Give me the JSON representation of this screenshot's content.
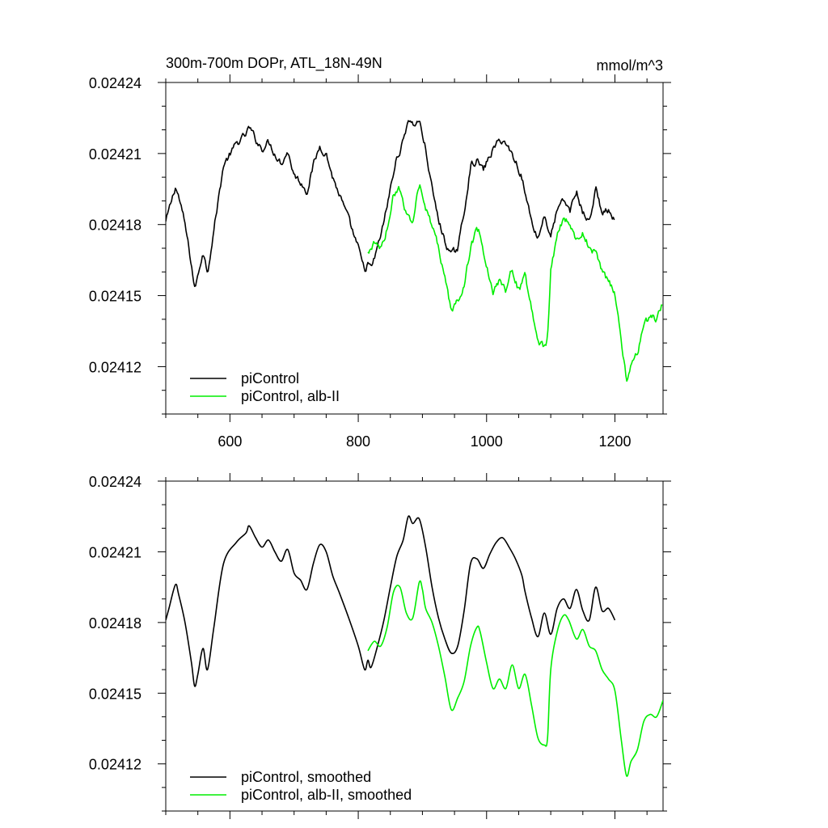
{
  "header": {
    "title": "300m-700m DOPr, ATL_18N-49N",
    "units": "mmol/m^3"
  },
  "colors": {
    "piControl": "#000000",
    "alb": "#00ee00"
  },
  "chart_data": [
    {
      "type": "line",
      "panel": "top",
      "title": "300m-700m DOPr, ATL_18N-49N",
      "units_label": "mmol/m^3",
      "xlim": [
        500,
        1275
      ],
      "ylim": [
        0.0241,
        0.02424
      ],
      "x_ticks": [
        600,
        800,
        1000,
        1200
      ],
      "x_tick_labels": [
        "600",
        "800",
        "1000",
        "1200"
      ],
      "y_ticks": [
        0.02412,
        0.02415,
        0.02418,
        0.02421,
        0.02424
      ],
      "y_tick_labels": [
        "0.02412",
        "0.02415",
        "0.02418",
        "0.02421",
        "0.02424"
      ],
      "legend": "bottom-left",
      "series": [
        {
          "name": "piControl",
          "color": "#000000",
          "noise": 1.7e-06,
          "x": [
            500,
            505,
            515,
            520,
            530,
            540,
            545,
            550,
            558,
            565,
            575,
            590,
            610,
            625,
            630,
            640,
            650,
            660,
            670,
            680,
            690,
            700,
            710,
            720,
            730,
            740,
            750,
            760,
            770,
            785,
            800,
            810,
            815,
            820,
            830,
            840,
            850,
            860,
            870,
            878,
            885,
            895,
            905,
            915,
            925,
            935,
            945,
            955,
            965,
            975,
            985,
            995,
            1005,
            1015,
            1025,
            1035,
            1045,
            1055,
            1060,
            1070,
            1080,
            1090,
            1100,
            1110,
            1120,
            1130,
            1140,
            1150,
            1160,
            1170,
            1180,
            1190,
            1200
          ],
          "y": [
            0.024181,
            0.024186,
            0.024196,
            0.024192,
            0.02418,
            0.024163,
            0.024153,
            0.024158,
            0.024169,
            0.02416,
            0.024178,
            0.024205,
            0.024214,
            0.024218,
            0.024221,
            0.024216,
            0.024212,
            0.024215,
            0.02421,
            0.024206,
            0.024211,
            0.024201,
            0.024198,
            0.024194,
            0.024205,
            0.024213,
            0.02421,
            0.0242,
            0.024193,
            0.024182,
            0.02417,
            0.02416,
            0.024164,
            0.024161,
            0.02417,
            0.024181,
            0.024195,
            0.024208,
            0.024215,
            0.024225,
            0.024222,
            0.024224,
            0.024212,
            0.024195,
            0.024182,
            0.024173,
            0.024167,
            0.02417,
            0.024185,
            0.024205,
            0.024207,
            0.024203,
            0.024209,
            0.024214,
            0.024216,
            0.024212,
            0.024207,
            0.0242,
            0.024193,
            0.024182,
            0.024174,
            0.024184,
            0.024175,
            0.024186,
            0.02419,
            0.024186,
            0.024194,
            0.024185,
            0.024181,
            0.024195,
            0.024185,
            0.024186,
            0.024181
          ]
        },
        {
          "name": "piControl, alb-II",
          "color": "#00ee00",
          "noise": 1.7e-06,
          "x": [
            815,
            825,
            835,
            845,
            855,
            865,
            875,
            885,
            895,
            900,
            905,
            915,
            925,
            935,
            945,
            955,
            965,
            975,
            985,
            990,
            1000,
            1010,
            1020,
            1030,
            1040,
            1050,
            1060,
            1070,
            1080,
            1090,
            1095,
            1100,
            1110,
            1120,
            1128,
            1140,
            1150,
            1160,
            1170,
            1180,
            1190,
            1200,
            1210,
            1218,
            1225,
            1235,
            1245,
            1255,
            1265,
            1275
          ],
          "y": [
            0.024168,
            0.024172,
            0.02417,
            0.024178,
            0.024193,
            0.024195,
            0.024184,
            0.024182,
            0.024197,
            0.024194,
            0.024186,
            0.02418,
            0.02417,
            0.024157,
            0.024143,
            0.024148,
            0.024155,
            0.02417,
            0.024178,
            0.024176,
            0.024163,
            0.024152,
            0.024156,
            0.024152,
            0.024162,
            0.024152,
            0.024158,
            0.024145,
            0.024131,
            0.024128,
            0.024131,
            0.02416,
            0.024176,
            0.024183,
            0.024181,
            0.024173,
            0.024177,
            0.02417,
            0.024168,
            0.02416,
            0.024156,
            0.024151,
            0.02413,
            0.024115,
            0.024121,
            0.024126,
            0.024138,
            0.024141,
            0.02414,
            0.024147
          ]
        }
      ]
    },
    {
      "type": "line",
      "panel": "bottom",
      "xlim": [
        500,
        1275
      ],
      "ylim": [
        0.0241,
        0.02424
      ],
      "x_ticks": [
        600,
        800,
        1000,
        1200
      ],
      "y_ticks": [
        0.02412,
        0.02415,
        0.02418,
        0.02421,
        0.02424
      ],
      "y_tick_labels": [
        "0.02412",
        "0.02415",
        "0.02418",
        "0.02421",
        "0.02424"
      ],
      "legend": "bottom-left",
      "series": [
        {
          "name": "piControl, smoothed",
          "color": "#000000",
          "x": [
            500,
            505,
            515,
            520,
            530,
            540,
            545,
            550,
            558,
            565,
            575,
            590,
            610,
            625,
            630,
            640,
            650,
            660,
            670,
            680,
            690,
            700,
            710,
            720,
            730,
            740,
            750,
            760,
            770,
            785,
            800,
            810,
            815,
            820,
            830,
            840,
            850,
            860,
            870,
            878,
            885,
            895,
            905,
            915,
            925,
            935,
            945,
            955,
            965,
            975,
            985,
            995,
            1005,
            1015,
            1025,
            1035,
            1045,
            1055,
            1060,
            1070,
            1080,
            1090,
            1100,
            1110,
            1120,
            1130,
            1140,
            1150,
            1160,
            1170,
            1180,
            1190,
            1200
          ],
          "y": [
            0.024181,
            0.024186,
            0.024196,
            0.024192,
            0.02418,
            0.024163,
            0.024153,
            0.024158,
            0.024169,
            0.02416,
            0.024178,
            0.024205,
            0.024214,
            0.024218,
            0.024221,
            0.024216,
            0.024212,
            0.024215,
            0.02421,
            0.024206,
            0.024211,
            0.024201,
            0.024198,
            0.024194,
            0.024205,
            0.024213,
            0.02421,
            0.0242,
            0.024193,
            0.024182,
            0.02417,
            0.02416,
            0.024164,
            0.024161,
            0.02417,
            0.024181,
            0.024195,
            0.024208,
            0.024215,
            0.024225,
            0.024222,
            0.024224,
            0.024212,
            0.024195,
            0.024182,
            0.024173,
            0.024167,
            0.02417,
            0.024185,
            0.024205,
            0.024207,
            0.024203,
            0.024209,
            0.024214,
            0.024216,
            0.024212,
            0.024207,
            0.0242,
            0.024193,
            0.024182,
            0.024174,
            0.024184,
            0.024175,
            0.024186,
            0.02419,
            0.024186,
            0.024194,
            0.024185,
            0.024181,
            0.024195,
            0.024185,
            0.024186,
            0.024181
          ]
        },
        {
          "name": "piControl, alb-II, smoothed",
          "color": "#00ee00",
          "x": [
            815,
            825,
            835,
            845,
            855,
            865,
            875,
            885,
            895,
            900,
            905,
            915,
            925,
            935,
            945,
            955,
            965,
            975,
            985,
            990,
            1000,
            1010,
            1020,
            1030,
            1040,
            1050,
            1060,
            1070,
            1080,
            1090,
            1095,
            1100,
            1110,
            1120,
            1128,
            1140,
            1150,
            1160,
            1170,
            1180,
            1190,
            1200,
            1210,
            1218,
            1225,
            1235,
            1245,
            1255,
            1265,
            1275
          ],
          "y": [
            0.024168,
            0.024172,
            0.02417,
            0.024178,
            0.024193,
            0.024195,
            0.024184,
            0.024182,
            0.024197,
            0.024194,
            0.024186,
            0.02418,
            0.02417,
            0.024157,
            0.024143,
            0.024148,
            0.024155,
            0.02417,
            0.024178,
            0.024176,
            0.024163,
            0.024152,
            0.024156,
            0.024152,
            0.024162,
            0.024152,
            0.024158,
            0.024145,
            0.024131,
            0.024128,
            0.024131,
            0.02416,
            0.024176,
            0.024183,
            0.024181,
            0.024173,
            0.024177,
            0.02417,
            0.024168,
            0.02416,
            0.024156,
            0.024151,
            0.02413,
            0.024115,
            0.024121,
            0.024126,
            0.024138,
            0.024141,
            0.02414,
            0.024147
          ]
        }
      ]
    }
  ]
}
